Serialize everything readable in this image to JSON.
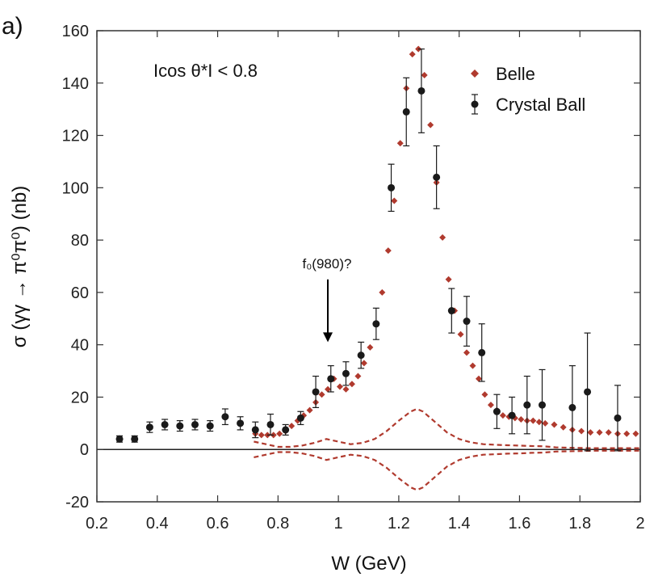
{
  "panel_label": "a)",
  "chart_data": {
    "type": "scatter",
    "title": "",
    "xlabel": "W (GeV)",
    "ylabel": "σ (γγ → π⁰π⁰) (nb)",
    "xlim": [
      0.2,
      2.0
    ],
    "ylim": [
      -20,
      160
    ],
    "xticks": [
      "0.2",
      "0.4",
      "0.6",
      "0.8",
      "1",
      "1.2",
      "1.4",
      "1.6",
      "1.8",
      "2"
    ],
    "yticks": [
      "-20",
      "0",
      "20",
      "40",
      "60",
      "80",
      "100",
      "120",
      "140",
      "160"
    ],
    "grid": false,
    "legend_position": "top-right",
    "annotations": {
      "cut_label": "Icos θ*I < 0.8",
      "arrow_label": "f₀(980)?",
      "arrow_x": 0.965,
      "arrow_from_y": 65,
      "arrow_to_y": 41
    },
    "series": [
      {
        "name": "Belle",
        "marker": "diamond",
        "color": "#b03a2e",
        "x": [
          0.725,
          0.745,
          0.765,
          0.785,
          0.805,
          0.825,
          0.845,
          0.865,
          0.885,
          0.905,
          0.925,
          0.945,
          0.965,
          0.985,
          1.005,
          1.025,
          1.045,
          1.065,
          1.085,
          1.105,
          1.125,
          1.145,
          1.165,
          1.185,
          1.205,
          1.225,
          1.245,
          1.265,
          1.285,
          1.305,
          1.325,
          1.345,
          1.365,
          1.385,
          1.405,
          1.425,
          1.445,
          1.465,
          1.485,
          1.505,
          1.525,
          1.545,
          1.565,
          1.585,
          1.605,
          1.625,
          1.645,
          1.665,
          1.685,
          1.715,
          1.745,
          1.775,
          1.805,
          1.835,
          1.865,
          1.895,
          1.925,
          1.955,
          1.985
        ],
        "y": [
          6,
          5.5,
          5.5,
          5.5,
          6,
          7,
          9,
          11,
          13,
          15,
          18,
          21,
          23,
          27,
          24,
          23,
          25,
          28,
          33,
          39,
          48,
          60,
          76,
          95,
          117,
          138,
          151,
          153,
          143,
          124,
          102,
          81,
          65,
          53,
          44,
          37,
          32,
          27,
          21,
          17,
          15,
          13,
          12.5,
          12,
          11.5,
          11,
          11,
          10.5,
          10,
          9.5,
          8.5,
          7.5,
          7,
          6.5,
          6.5,
          6.5,
          6,
          6,
          6
        ]
      },
      {
        "name": "Crystal Ball",
        "marker": "circle",
        "color": "#1a1a1a",
        "x": [
          0.275,
          0.325,
          0.375,
          0.425,
          0.475,
          0.525,
          0.575,
          0.625,
          0.675,
          0.725,
          0.775,
          0.825,
          0.875,
          0.925,
          0.975,
          1.025,
          1.075,
          1.125,
          1.175,
          1.225,
          1.275,
          1.325,
          1.375,
          1.425,
          1.475,
          1.525,
          1.575,
          1.625,
          1.675,
          1.775,
          1.825,
          1.925
        ],
        "y": [
          4,
          4,
          8.5,
          9.5,
          9,
          9.5,
          9,
          12.5,
          10,
          7.5,
          9.5,
          7.5,
          12,
          22,
          27,
          29,
          36,
          48,
          100,
          129,
          137,
          104,
          53,
          49,
          37,
          14.5,
          13,
          17,
          17,
          16,
          22,
          12
        ],
        "err": [
          1.2,
          1.2,
          2,
          2,
          2,
          2,
          2,
          3,
          2.5,
          3,
          4,
          2,
          2.5,
          6,
          5,
          4.5,
          5,
          6,
          9,
          13,
          16,
          12,
          8.5,
          9.5,
          11,
          6.5,
          7,
          11,
          13.5,
          16,
          22.5,
          12.5
        ]
      },
      {
        "name": "dashed band upper",
        "style": "dashed",
        "color": "#b03a2e",
        "x": [
          0.72,
          0.76,
          0.8,
          0.84,
          0.88,
          0.92,
          0.96,
          1.0,
          1.04,
          1.08,
          1.12,
          1.16,
          1.2,
          1.24,
          1.26,
          1.28,
          1.32,
          1.36,
          1.4,
          1.44,
          1.48,
          1.52,
          1.56,
          1.6,
          1.64,
          1.68,
          1.72,
          1.76,
          1.8,
          1.84,
          1.88,
          1.92,
          1.96,
          2.0
        ],
        "y": [
          3,
          2,
          1,
          1,
          1.5,
          2.5,
          4,
          3,
          2,
          2.5,
          4,
          7,
          11,
          14.5,
          15.5,
          14.5,
          10.5,
          6.5,
          4,
          2.7,
          2,
          1.8,
          1.6,
          1.5,
          1.3,
          1.2,
          0.8,
          0.7,
          0.6,
          0.5,
          0.5,
          0.5,
          0.5,
          0.5
        ]
      },
      {
        "name": "dashed band lower",
        "style": "dashed",
        "color": "#b03a2e",
        "x": [
          0.72,
          0.76,
          0.8,
          0.84,
          0.88,
          0.92,
          0.96,
          1.0,
          1.04,
          1.08,
          1.12,
          1.16,
          1.2,
          1.24,
          1.26,
          1.28,
          1.32,
          1.36,
          1.4,
          1.44,
          1.48,
          1.52,
          1.56,
          1.6,
          1.64,
          1.68,
          1.72,
          1.76,
          1.8,
          1.84,
          1.88,
          1.92,
          1.96,
          2.0
        ],
        "y": [
          -3,
          -2,
          -1,
          -1,
          -1.5,
          -2.5,
          -4,
          -3,
          -2,
          -2.5,
          -4,
          -7,
          -11,
          -14.5,
          -15.5,
          -14.5,
          -10.5,
          -6.5,
          -4,
          -2.7,
          -2,
          -1.8,
          -1.6,
          -1.5,
          -1.3,
          -1.2,
          -0.8,
          -0.7,
          -0.6,
          -0.5,
          -0.5,
          -0.5,
          -0.5,
          -0.5
        ]
      }
    ]
  }
}
